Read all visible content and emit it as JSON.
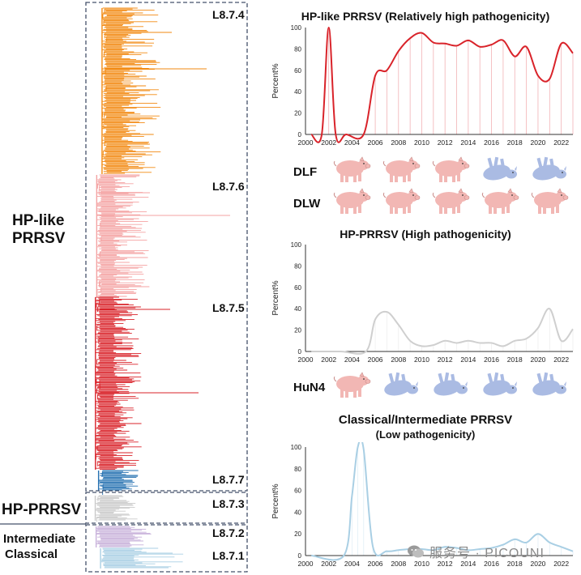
{
  "tree": {
    "groups": [
      {
        "id": "hp-like",
        "lines": [
          "HP-like",
          "PRRSV"
        ]
      },
      {
        "id": "hp",
        "lines": [
          "HP-PRRSV"
        ]
      },
      {
        "id": "intermediate",
        "lines": [
          "Intermediate",
          "Classical"
        ]
      }
    ],
    "clades": [
      {
        "name": "L8.7.4",
        "color": "#f28a12"
      },
      {
        "name": "L8.7.6",
        "color": "#f4a3a3"
      },
      {
        "name": "L8.7.5",
        "color": "#d9232a"
      },
      {
        "name": "L8.7.7",
        "color": "#2470b1"
      },
      {
        "name": "L8.7.3",
        "color": "#c9c9c9"
      },
      {
        "name": "L8.7.2",
        "color": "#c7b0da"
      },
      {
        "name": "L8.7.1",
        "color": "#a9cfe4"
      }
    ]
  },
  "animals": {
    "rows": [
      {
        "label": "DLF",
        "states": [
          "pink",
          "pink",
          "pink",
          "blue",
          "blue"
        ]
      },
      {
        "label": "DLW",
        "states": [
          "pink",
          "pink",
          "pink",
          "pink",
          "pink"
        ]
      },
      {
        "label": "HuN4",
        "states": [
          "pink",
          "blue",
          "blue",
          "blue",
          "blue"
        ]
      }
    ],
    "colors": {
      "pink": "#f2b7b4",
      "blue": "#aabbe3"
    }
  },
  "watermark": {
    "icon": "wechat-icon",
    "text": "服务号 · PICOUNI"
  },
  "chart_data": [
    {
      "type": "line",
      "title": "HP-like PRRSV (Relatively high pathogenicity)",
      "ylabel": "Percent%",
      "color": "#d9232a",
      "ylim": [
        0,
        100
      ],
      "yticks": [
        0,
        20,
        40,
        60,
        80,
        100
      ],
      "xlim": [
        2000,
        2023
      ],
      "xticks": [
        2000,
        2002,
        2004,
        2006,
        2008,
        2010,
        2012,
        2014,
        2016,
        2018,
        2020,
        2022
      ],
      "x": [
        2000.5,
        2001.4,
        2002,
        2002.6,
        2003.5,
        2005.0,
        2006,
        2007,
        2008,
        2009,
        2010,
        2011,
        2012,
        2013,
        2014,
        2015,
        2016,
        2017,
        2018,
        2019,
        2020,
        2021,
        2022,
        2023
      ],
      "values": [
        0,
        0,
        100,
        0,
        0,
        0,
        55,
        60,
        78,
        90,
        95,
        86,
        85,
        83,
        88,
        82,
        84,
        88,
        73,
        82,
        55,
        52,
        85,
        76
      ]
    },
    {
      "type": "line",
      "title": "HP-PRRSV (High pathogenicity)",
      "ylabel": "Percent%",
      "color": "#cfcfcf",
      "ylim": [
        0,
        100
      ],
      "yticks": [
        0,
        20,
        40,
        60,
        80,
        100
      ],
      "xlim": [
        2000,
        2023
      ],
      "xticks": [
        2000,
        2002,
        2004,
        2006,
        2008,
        2010,
        2012,
        2014,
        2016,
        2018,
        2020,
        2022
      ],
      "x": [
        2000.5,
        2003,
        2005.2,
        2006,
        2007,
        2008,
        2009,
        2010,
        2011,
        2012,
        2013,
        2014,
        2015,
        2016,
        2017,
        2018,
        2019,
        2020,
        2021,
        2022,
        2023
      ],
      "values": [
        0,
        0,
        0,
        30,
        37,
        25,
        10,
        5,
        6,
        10,
        8,
        10,
        8,
        8,
        5,
        10,
        12,
        22,
        40,
        10,
        21
      ]
    },
    {
      "type": "line",
      "title": "Classical/Intermediate PRRSV",
      "subtitle": "(Low pathogenicity)",
      "ylabel": "Percent%",
      "color": "#a9cfe4",
      "ylim": [
        0,
        100
      ],
      "yticks": [
        0,
        20,
        40,
        60,
        80,
        100
      ],
      "xlim": [
        2000,
        2023
      ],
      "xticks": [
        2000,
        2002,
        2004,
        2006,
        2008,
        2010,
        2012,
        2014,
        2016,
        2018,
        2020,
        2022
      ],
      "x": [
        2000.5,
        2003.3,
        2004,
        2004.5,
        2005,
        2005.8,
        2007,
        2008,
        2009,
        2010,
        2011,
        2012,
        2013,
        2014,
        2015,
        2016,
        2017,
        2018,
        2019,
        2020,
        2021,
        2022,
        2023
      ],
      "values": [
        0,
        0,
        55,
        100,
        98,
        8,
        4,
        5,
        6,
        6,
        5,
        8,
        7,
        5,
        6,
        7,
        10,
        15,
        12,
        20,
        12,
        8,
        4
      ]
    }
  ]
}
